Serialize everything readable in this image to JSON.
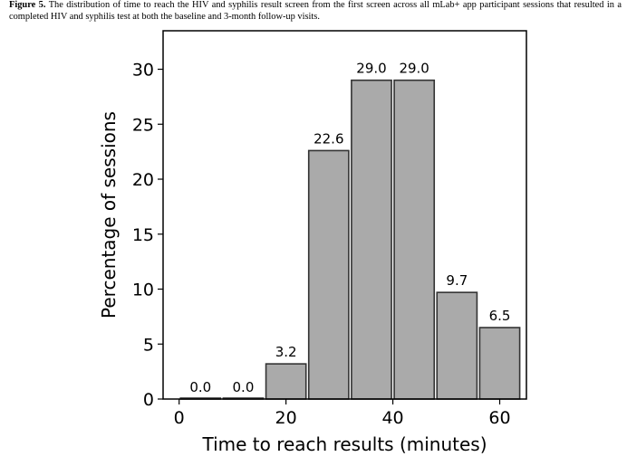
{
  "caption": {
    "label": "Figure 5.",
    "text": "The distribution of time to reach the HIV and syphilis result screen from the first screen across all mLab+ app participant sessions that resulted in a completed HIV and syphilis test at both the baseline and 3-month follow-up visits."
  },
  "chart_data": {
    "type": "bar",
    "xlabel": "Time to reach results (minutes)",
    "ylabel": "Percentage of sessions",
    "bins": [
      {
        "start": 0,
        "end": 8
      },
      {
        "start": 8,
        "end": 16
      },
      {
        "start": 16,
        "end": 24
      },
      {
        "start": 24,
        "end": 32
      },
      {
        "start": 32,
        "end": 40
      },
      {
        "start": 40,
        "end": 48
      },
      {
        "start": 48,
        "end": 56
      },
      {
        "start": 56,
        "end": 64
      }
    ],
    "values": [
      0.0,
      0.0,
      3.2,
      22.6,
      29.0,
      29.0,
      9.7,
      6.5
    ],
    "data_labels": [
      "0.0",
      "0.0",
      "3.2",
      "22.6",
      "29.0",
      "29.0",
      "9.7",
      "6.5"
    ],
    "xticks": [
      0,
      20,
      40,
      60
    ],
    "yticks": [
      0,
      5,
      10,
      15,
      20,
      25,
      30
    ],
    "xlim": [
      -3,
      65
    ],
    "ylim": [
      0,
      33.5
    ],
    "grid": false,
    "bar_color": "#aaaaaa",
    "edge_color": "#333333"
  }
}
